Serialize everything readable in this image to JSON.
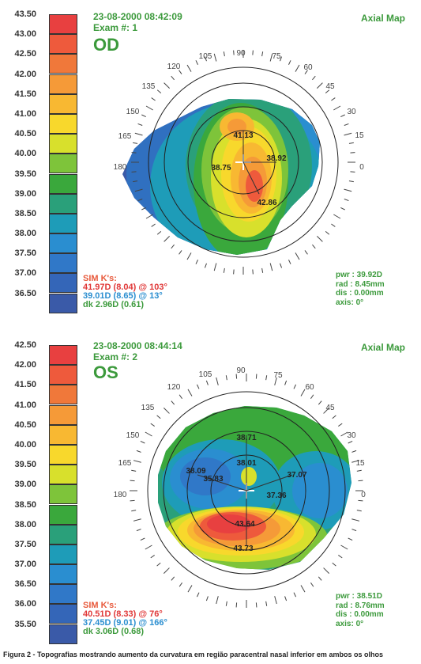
{
  "od": {
    "scale": [
      {
        "label": "43.50",
        "color": "#e84040"
      },
      {
        "label": "43.00",
        "color": "#ee5a3c"
      },
      {
        "label": "42.50",
        "color": "#f0783a"
      },
      {
        "label": "42.00",
        "color": "#f59a38"
      },
      {
        "label": "41.50",
        "color": "#f8b832"
      },
      {
        "label": "41.00",
        "color": "#f8d82c"
      },
      {
        "label": "40.50",
        "color": "#d8e02c"
      },
      {
        "label": "40.00",
        "color": "#7ec43a"
      },
      {
        "label": "39.50",
        "color": "#3aa83c"
      },
      {
        "label": "39.00",
        "color": "#2aa07a"
      },
      {
        "label": "38.50",
        "color": "#1e9cb8"
      },
      {
        "label": "38.00",
        "color": "#2a8ed0"
      },
      {
        "label": "37.50",
        "color": "#3078c8"
      },
      {
        "label": "37.00",
        "color": "#3466b8"
      },
      {
        "label": "36.50",
        "color": "#3a5aa8"
      }
    ],
    "date": "23-08-2000 08:42:09",
    "exam": "Exam #: 1",
    "eye": "OD",
    "map_name": "Axial Map",
    "angles": [
      "90",
      "105",
      "75",
      "120",
      "60",
      "135",
      "45",
      "150",
      "30",
      "165",
      "15",
      "180",
      "0"
    ],
    "kvalues": [
      "41.13",
      "38.92",
      "38.75",
      "42.86"
    ],
    "sim_title": "SIM K's:",
    "sim_line1": "41.97D (8.04) @ 103°",
    "sim_line2": "39.01D (8.65) @ 13°",
    "sim_line3": "dk  2.96D (0.61)",
    "pwr": "pwr : 39.92D",
    "rad": "rad :  8.45mm",
    "dis": "dis :  0.00mm",
    "axis": "axis:   0°"
  },
  "os": {
    "scale": [
      {
        "label": "42.50",
        "color": "#e84040"
      },
      {
        "label": "42.00",
        "color": "#ee5a3c"
      },
      {
        "label": "41.50",
        "color": "#f0783a"
      },
      {
        "label": "41.00",
        "color": "#f59a38"
      },
      {
        "label": "40.50",
        "color": "#f8b832"
      },
      {
        "label": "40.00",
        "color": "#f8d82c"
      },
      {
        "label": "39.50",
        "color": "#d8e02c"
      },
      {
        "label": "39.00",
        "color": "#7ec43a"
      },
      {
        "label": "38.50",
        "color": "#3aa83c"
      },
      {
        "label": "38.00",
        "color": "#2aa07a"
      },
      {
        "label": "37.50",
        "color": "#1e9cb8"
      },
      {
        "label": "37.00",
        "color": "#2a8ed0"
      },
      {
        "label": "36.50",
        "color": "#3078c8"
      },
      {
        "label": "36.00",
        "color": "#3466b8"
      },
      {
        "label": "35.50",
        "color": "#3a5aa8"
      }
    ],
    "date": "23-08-2000 08:44:14",
    "exam": "Exam #: 2",
    "eye": "OS",
    "map_name": "Axial Map",
    "angles": [
      "90",
      "105",
      "75",
      "120",
      "60",
      "135",
      "45",
      "150",
      "30",
      "165",
      "15",
      "180",
      "0"
    ],
    "kvalues": [
      "38.71",
      "38.01",
      "38.09",
      "35.83",
      "37.07",
      "37.36",
      "43.64",
      "43.73"
    ],
    "sim_title": "SIM K's:",
    "sim_line1": "40.51D (8.33) @  76°",
    "sim_line2": "37.45D (9.01) @ 166°",
    "sim_line3": "dk  3.06D (0.68)",
    "pwr": "pwr : 38.51D",
    "rad": "rad :  8.76mm",
    "dis": "dis :  0.00mm",
    "axis": "axis:   0°"
  },
  "caption": "Figura 2 - Topografias mostrando aumento da curvatura em região paracentral nasal inferior em ambos os olhos"
}
